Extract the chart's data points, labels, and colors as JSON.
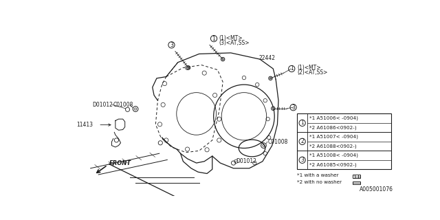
{
  "bg_color": "#ffffff",
  "line_color": "#1a1a1a",
  "fig_width": 6.4,
  "fig_height": 3.2,
  "dpi": 100,
  "part_number": "A005001076",
  "label_22442": "22442",
  "label_D01012_top": "D01012",
  "label_C01008_top": "C01008",
  "label_D01012_bot": "D01012",
  "label_C01008_bot": "C01008",
  "label_11413": "11413",
  "label_FRONT": "FRONT",
  "callout_top_left_line1": "(1)<MT>",
  "callout_top_left_line2": "(3)<AT,SS>",
  "callout_top_right_line1": "(1)<MT>",
  "callout_top_right_line2": "(2)<AT,SS>",
  "table_rows": [
    [
      "*1 A51006（-0904）",
      "*2 A61086（0902-）"
    ],
    [
      "*1 A51007（-0904）",
      "*2 A61088（0902-）"
    ],
    [
      "*1 A51008（-0904）",
      "*2 A61085（0902-）"
    ]
  ],
  "note1": "*1 with a washer",
  "note2": "*2 with no washer"
}
